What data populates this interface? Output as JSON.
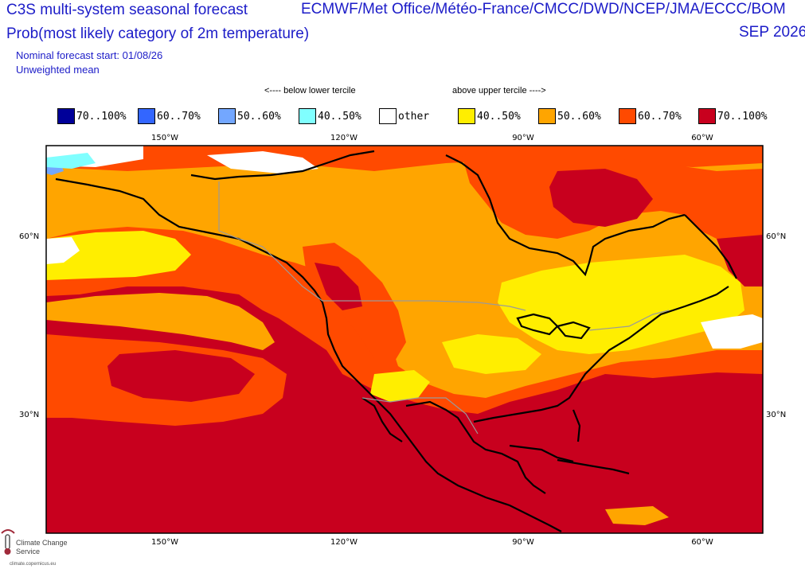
{
  "header": {
    "title_line1": "C3S multi-system seasonal forecast",
    "title_line2": "Prob(most likely category of 2m temperature)",
    "sources": "ECMWF/Met Office/Météo-France/CMCC/DWD/NCEP/JMA/ECCC/BOM",
    "valid_month": "SEP 2026",
    "forecast_start": "Nominal forecast start: 01/08/26",
    "mean_type": "Unweighted mean"
  },
  "legend": {
    "below_note": "<---- below lower tercile",
    "above_note": "above upper tercile ---->",
    "items": [
      {
        "label": "70..100%",
        "color": "#000099"
      },
      {
        "label": "60..70%",
        "color": "#3366ff"
      },
      {
        "label": "50..60%",
        "color": "#73a7ff"
      },
      {
        "label": "40..50%",
        "color": "#80ffff"
      },
      {
        "label": "other",
        "color": "#ffffff"
      },
      {
        "label": "40..50%",
        "color": "#ffee00"
      },
      {
        "label": "50..60%",
        "color": "#ffa500"
      },
      {
        "label": "60..70%",
        "color": "#ff4a00"
      },
      {
        "label": "70..100%",
        "color": "#c8001e"
      }
    ]
  },
  "axes": {
    "lon_labels": [
      "150°W",
      "120°W",
      "90°W",
      "60°W"
    ],
    "lat_labels": [
      "60°N",
      "30°N"
    ]
  },
  "map": {
    "region": "North America",
    "colors": {
      "deep_red": "#c8001e",
      "red": "#ff4a00",
      "orange": "#ffa500",
      "yellow": "#ffee00",
      "white": "#ffffff",
      "light_cyan": "#80ffff",
      "light_blue": "#73a7ff"
    }
  },
  "logo": {
    "name": "Climate Change Service",
    "url": "climate.copernicus.eu",
    "icon": "copernicus-thermometer-icon"
  }
}
